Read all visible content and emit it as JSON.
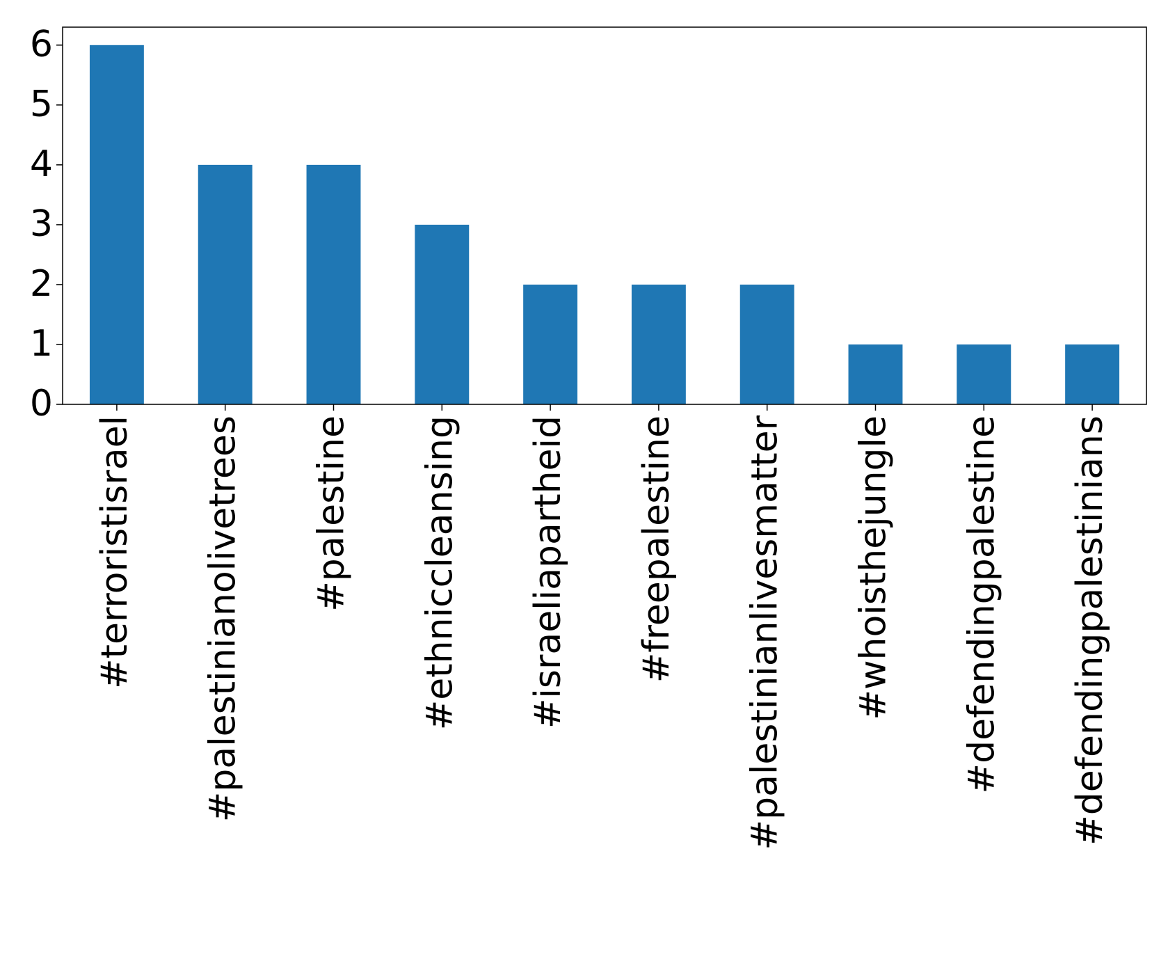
{
  "chart_data": {
    "type": "bar",
    "categories": [
      "#terroristisrael",
      "#palestinianolivetrees",
      "#palestine",
      "#ethniccleansing",
      "#israeliapartheid",
      "#freepalestine",
      "#palestinianlivesmatter",
      "#whoisthejungle",
      "#defendingpalestine",
      "#defendingpalestinians"
    ],
    "values": [
      6,
      4,
      4,
      3,
      2,
      2,
      2,
      1,
      1,
      1
    ],
    "color": "#1f77b4",
    "ylim": [
      0,
      6.3
    ],
    "yticks": [
      0,
      1,
      2,
      3,
      4,
      5,
      6
    ],
    "grid": false
  }
}
